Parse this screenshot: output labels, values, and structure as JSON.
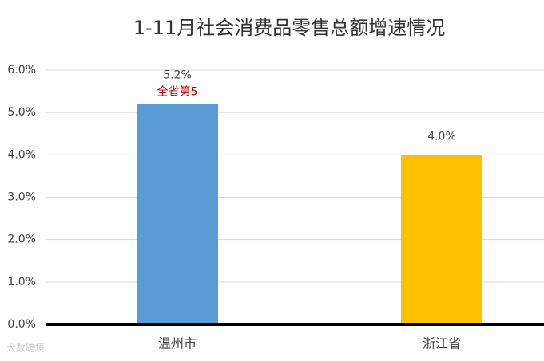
{
  "chart_data": {
    "type": "bar",
    "title": "1-11月社会消费品零售总额增速情况",
    "categories": [
      "温州市",
      "浙江省"
    ],
    "values": [
      5.2,
      4.0
    ],
    "value_labels": [
      "5.2%",
      "4.0%"
    ],
    "colors": [
      "#5b9bd5",
      "#ffc000"
    ],
    "annotation": "全省第5",
    "annotation_color": "#c00000",
    "watermark": "大数跨境",
    "ylim": [
      0,
      6
    ],
    "yticks": [
      {
        "value": 0,
        "label": "0.0%"
      },
      {
        "value": 1,
        "label": "1.0%"
      },
      {
        "value": 2,
        "label": "2.0%"
      },
      {
        "value": 3,
        "label": "3.0%"
      },
      {
        "value": 4,
        "label": "4.0%"
      },
      {
        "value": 5,
        "label": "5.0%"
      },
      {
        "value": 6,
        "label": "6.0%"
      }
    ],
    "grid": true
  }
}
